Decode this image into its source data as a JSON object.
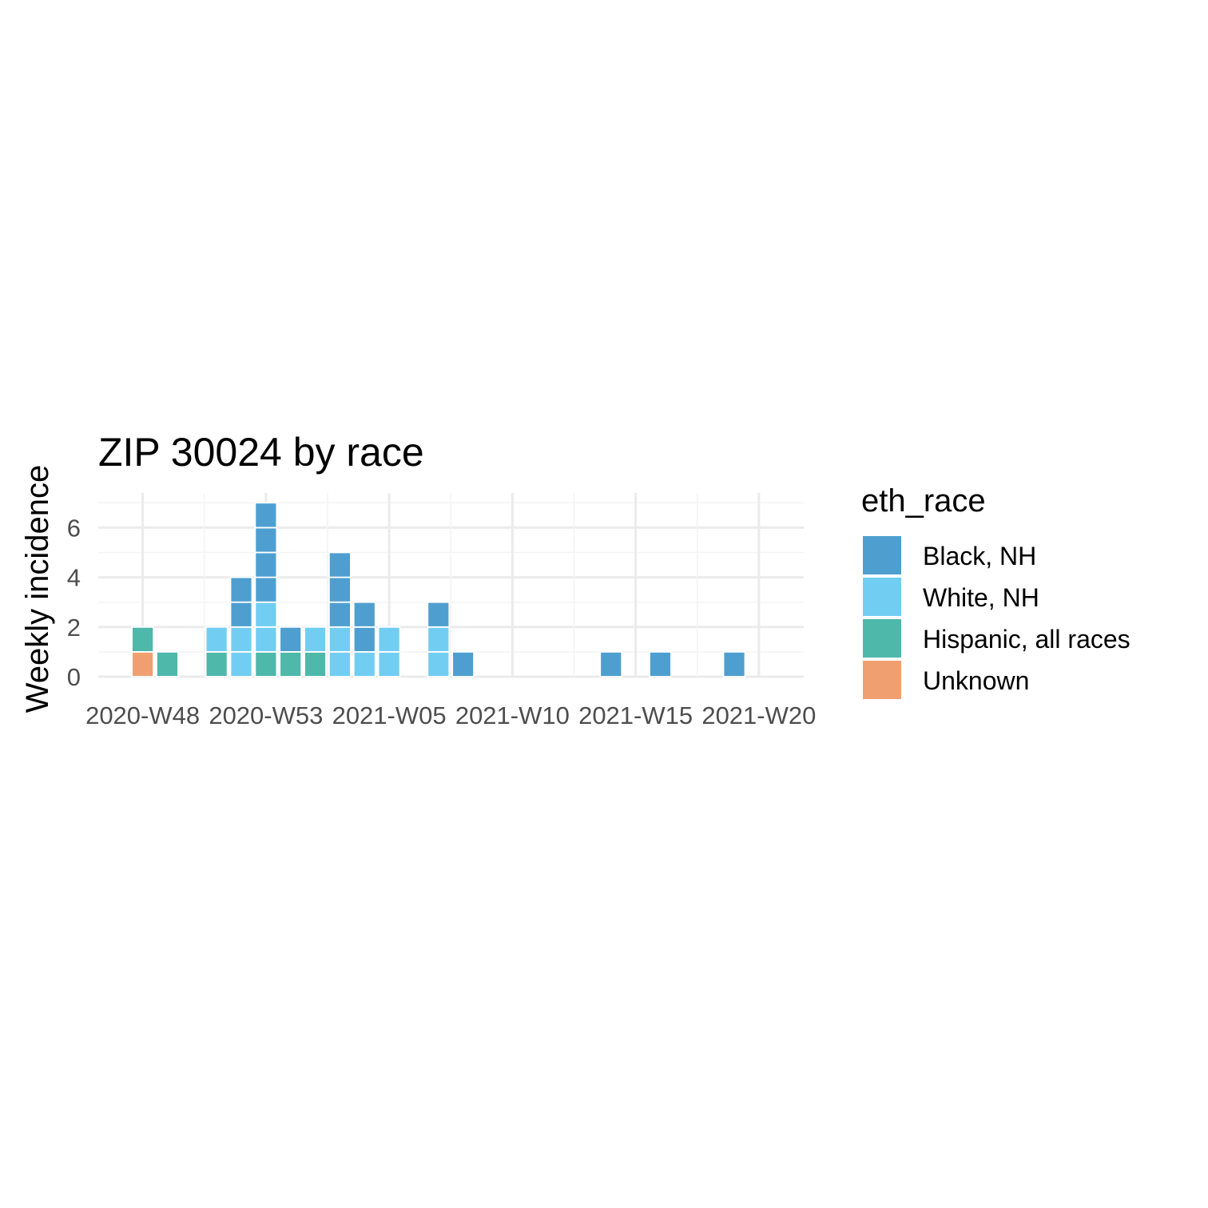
{
  "chart_data": {
    "type": "bar",
    "title": "ZIP 30024 by race",
    "xlabel": "",
    "ylabel": "Weekly incidence",
    "x_tick_labels": [
      "2020-W48",
      "2020-W53",
      "2021-W05",
      "2021-W10",
      "2021-W15",
      "2021-W20"
    ],
    "y_tick_labels": [
      "0",
      "2",
      "4",
      "6"
    ],
    "ylim": [
      0,
      7.3
    ],
    "grid": true,
    "stacking": "one box per case, stacked bottom to top",
    "legend": {
      "title": "eth_race",
      "placement": "right",
      "entries": [
        "Black, NH",
        "White, NH",
        "Hispanic, all races",
        "Unknown"
      ]
    },
    "colors": {
      "Black, NH": "#4e9fd0",
      "White, NH": "#72cdf2",
      "Hispanic, all races": "#4eb8aa",
      "Unknown": "#f0a070"
    },
    "weeks": [
      {
        "week": "2020-W48",
        "stack": [
          "Unknown",
          "Hispanic, all races"
        ]
      },
      {
        "week": "2020-W49",
        "stack": [
          "Hispanic, all races"
        ]
      },
      {
        "week": "2020-W50",
        "stack": []
      },
      {
        "week": "2020-W51",
        "stack": [
          "Hispanic, all races",
          "White, NH"
        ]
      },
      {
        "week": "2020-W52",
        "stack": [
          "White, NH",
          "White, NH",
          "Black, NH",
          "Black, NH"
        ]
      },
      {
        "week": "2020-W53",
        "stack": [
          "Hispanic, all races",
          "White, NH",
          "White, NH",
          "Black, NH",
          "Black, NH",
          "Black, NH",
          "Black, NH"
        ]
      },
      {
        "week": "2021-W01",
        "stack": [
          "Hispanic, all races",
          "Black, NH"
        ]
      },
      {
        "week": "2021-W02",
        "stack": [
          "Hispanic, all races",
          "White, NH"
        ]
      },
      {
        "week": "2021-W03",
        "stack": [
          "White, NH",
          "White, NH",
          "Black, NH",
          "Black, NH",
          "Black, NH"
        ]
      },
      {
        "week": "2021-W04",
        "stack": [
          "White, NH",
          "Black, NH",
          "Black, NH"
        ]
      },
      {
        "week": "2021-W05",
        "stack": [
          "White, NH",
          "White, NH"
        ]
      },
      {
        "week": "2021-W06",
        "stack": []
      },
      {
        "week": "2021-W07",
        "stack": [
          "White, NH",
          "White, NH",
          "Black, NH"
        ]
      },
      {
        "week": "2021-W08",
        "stack": [
          "Black, NH"
        ]
      },
      {
        "week": "2021-W14",
        "stack": [
          "Black, NH"
        ]
      },
      {
        "week": "2021-W16",
        "stack": [
          "Black, NH"
        ]
      },
      {
        "week": "2021-W19",
        "stack": [
          "Black, NH"
        ]
      }
    ]
  }
}
